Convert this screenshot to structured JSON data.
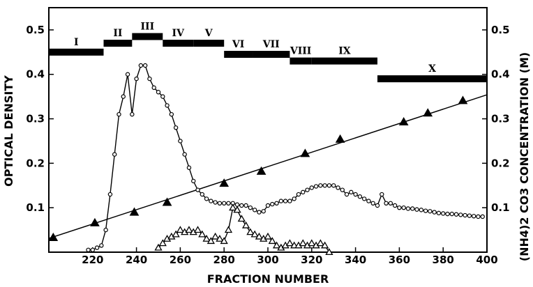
{
  "chart_data": {
    "type": "line",
    "xlabel": "FRACTION NUMBER",
    "ylabel": "OPTICAL DENSITY",
    "y2label": "(NH4)2 CO3 CONCENTRATION (M)",
    "xlim": [
      200,
      400
    ],
    "ylim": [
      0,
      0.55
    ],
    "y2lim": [
      0,
      0.55
    ],
    "x_ticks": [
      220,
      240,
      260,
      280,
      300,
      320,
      340,
      360,
      380,
      400
    ],
    "y_ticks": [
      0.1,
      0.2,
      0.3,
      0.4,
      0.5
    ],
    "y2_ticks": [
      0.1,
      0.2,
      0.3,
      0.4,
      0.5
    ],
    "fractions": [
      {
        "label": "I",
        "from": 200,
        "to": 225,
        "level": 0.45
      },
      {
        "label": "II",
        "from": 225,
        "to": 238,
        "level": 0.47
      },
      {
        "label": "III",
        "from": 238,
        "to": 252,
        "level": 0.485
      },
      {
        "label": "IV",
        "from": 252,
        "to": 266,
        "level": 0.47
      },
      {
        "label": "V",
        "from": 266,
        "to": 280,
        "level": 0.47
      },
      {
        "label": "VI",
        "from": 280,
        "to": 293,
        "level": 0.445
      },
      {
        "label": "VII",
        "from": 293,
        "to": 310,
        "level": 0.445
      },
      {
        "label": "VIII",
        "from": 310,
        "to": 320,
        "level": 0.43
      },
      {
        "label": "IX",
        "from": 320,
        "to": 350,
        "level": 0.43
      },
      {
        "label": "X",
        "from": 350,
        "to": 400,
        "level": 0.39
      }
    ],
    "series": [
      {
        "marker": "open-circle",
        "axis": "left",
        "x": [
          218,
          220,
          222,
          224,
          226,
          228,
          230,
          232,
          234,
          236,
          238,
          240,
          242,
          244,
          246,
          248,
          250,
          252,
          254,
          256,
          258,
          260,
          262,
          264,
          266,
          268,
          270,
          272,
          274,
          276,
          278,
          280,
          282,
          284,
          286,
          288,
          290,
          292,
          294,
          296,
          298,
          300,
          302,
          304,
          306,
          308,
          310,
          312,
          314,
          316,
          318,
          320,
          322,
          324,
          326,
          328,
          330,
          332,
          334,
          336,
          338,
          340,
          342,
          344,
          346,
          348,
          350,
          352,
          354,
          356,
          358,
          360,
          362,
          364,
          366,
          368,
          370,
          372,
          374,
          376,
          378,
          380,
          382,
          384,
          386,
          388,
          390,
          392,
          394,
          396,
          398
        ],
        "y": [
          0.005,
          0.005,
          0.01,
          0.015,
          0.05,
          0.13,
          0.22,
          0.31,
          0.35,
          0.4,
          0.31,
          0.39,
          0.42,
          0.42,
          0.39,
          0.37,
          0.36,
          0.35,
          0.33,
          0.31,
          0.28,
          0.25,
          0.22,
          0.19,
          0.16,
          0.14,
          0.13,
          0.12,
          0.115,
          0.112,
          0.11,
          0.11,
          0.11,
          0.11,
          0.107,
          0.105,
          0.105,
          0.1,
          0.095,
          0.09,
          0.092,
          0.105,
          0.108,
          0.11,
          0.115,
          0.115,
          0.115,
          0.12,
          0.13,
          0.135,
          0.14,
          0.145,
          0.148,
          0.15,
          0.15,
          0.15,
          0.15,
          0.145,
          0.14,
          0.13,
          0.135,
          0.13,
          0.125,
          0.12,
          0.115,
          0.11,
          0.105,
          0.13,
          0.11,
          0.11,
          0.105,
          0.1,
          0.1,
          0.098,
          0.098,
          0.096,
          0.095,
          0.093,
          0.092,
          0.09,
          0.088,
          0.087,
          0.086,
          0.086,
          0.085,
          0.084,
          0.083,
          0.082,
          0.081,
          0.08,
          0.08
        ]
      },
      {
        "marker": "open-triangle",
        "axis": "left",
        "x": [
          250,
          252,
          254,
          256,
          258,
          260,
          262,
          264,
          266,
          268,
          270,
          272,
          274,
          276,
          278,
          280,
          282,
          284,
          286,
          288,
          290,
          292,
          294,
          296,
          298,
          300,
          302,
          304,
          306,
          308,
          310,
          312,
          314,
          316,
          318,
          320,
          322,
          324,
          326,
          328
        ],
        "y": [
          0.01,
          0.02,
          0.03,
          0.035,
          0.04,
          0.05,
          0.045,
          0.05,
          0.045,
          0.05,
          0.04,
          0.03,
          0.025,
          0.035,
          0.03,
          0.025,
          0.05,
          0.1,
          0.095,
          0.075,
          0.06,
          0.045,
          0.04,
          0.035,
          0.03,
          0.035,
          0.025,
          0.015,
          0.01,
          0.015,
          0.02,
          0.015,
          0.015,
          0.02,
          0.015,
          0.02,
          0.015,
          0.02,
          0.015,
          0.0
        ]
      },
      {
        "marker": "filled-triangle",
        "axis": "right",
        "x": [
          202,
          221,
          239,
          254,
          280,
          297,
          317,
          333,
          362,
          373,
          389
        ],
        "y": [
          0.033,
          0.066,
          0.09,
          0.112,
          0.155,
          0.182,
          0.222,
          0.254,
          0.293,
          0.313,
          0.341
        ]
      }
    ],
    "fit_line": {
      "axis": "right",
      "x": [
        200,
        400
      ],
      "y": [
        0.031,
        0.354
      ]
    }
  }
}
